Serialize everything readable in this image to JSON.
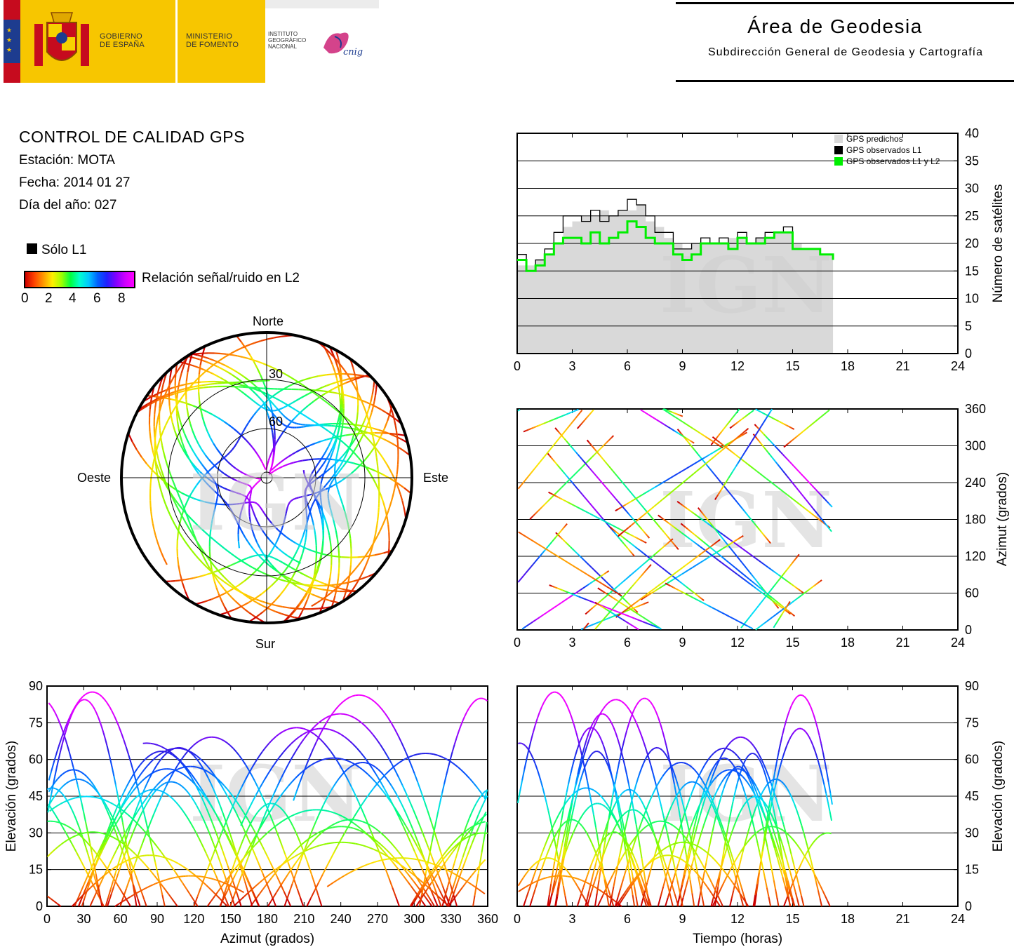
{
  "header": {
    "government": [
      "GOBIERNO",
      "DE ESPAÑA"
    ],
    "ministry": [
      "MINISTERIO",
      "DE FOMENTO"
    ],
    "institute": [
      "INSTITUTO",
      "GEOGRÁFICO",
      "NACIONAL"
    ],
    "cnig_logo_text": "cnig",
    "area_title": "Área de Geodesia",
    "area_subtitle": "Subdirección General de Geodesia y Cartografía"
  },
  "info": {
    "title": "CONTROL DE CALIDAD GPS",
    "station": "Estación: MOTA",
    "date": "Fecha: 2014 01 27",
    "doy": "Día del año: 027"
  },
  "legend": {
    "l1_only": "Sólo L1",
    "snr_label": "Relación señal/ruido en L2",
    "snr_ticks": [
      "0",
      "2",
      "4",
      "6",
      "8"
    ]
  },
  "watermark": "IGN",
  "chart_data": [
    {
      "id": "skyplot",
      "type": "scatter",
      "title": "",
      "directions": {
        "north": "Norte",
        "south": "Sur",
        "east": "Este",
        "west": "Oeste"
      },
      "rings": [
        "30",
        "60"
      ],
      "color_scale": "SNR L2 0-8"
    },
    {
      "id": "satellite-count",
      "type": "line",
      "xlabel": "",
      "ylabel": "Número de satélites",
      "xlim": [
        0,
        24
      ],
      "ylim": [
        0,
        40
      ],
      "xticks": [
        "0",
        "3",
        "6",
        "9",
        "12",
        "15",
        "18",
        "21",
        "24"
      ],
      "yticks": [
        "0",
        "5",
        "10",
        "15",
        "20",
        "25",
        "30",
        "35",
        "40"
      ],
      "legend_position": "top-right",
      "x": [
        0,
        0.5,
        1,
        1.5,
        2,
        2.5,
        3,
        3.5,
        4,
        4.5,
        5,
        5.5,
        6,
        6.5,
        7,
        7.5,
        8,
        8.5,
        9,
        9.5,
        10,
        10.5,
        11,
        11.5,
        12,
        12.5,
        13,
        13.5,
        14,
        14.5,
        15,
        15.5,
        16,
        16.5,
        17.2
      ],
      "series": [
        {
          "name": "GPS predichos",
          "color": "#d9d9d9",
          "values": [
            16,
            16,
            17,
            18,
            20,
            23,
            24,
            25,
            25,
            26,
            25,
            26,
            26,
            27,
            24,
            23,
            21,
            20,
            19,
            20,
            20,
            20,
            20,
            21,
            21,
            20,
            21,
            21,
            22,
            22,
            20,
            19,
            19,
            18,
            17
          ]
        },
        {
          "name": "GPS observados L1",
          "color": "#000000",
          "values": [
            18,
            15,
            17,
            19,
            22,
            25,
            25,
            24,
            26,
            24,
            25,
            26,
            28,
            27,
            25,
            22,
            22,
            19,
            19,
            20,
            21,
            20,
            21,
            20,
            22,
            20,
            21,
            22,
            22,
            23,
            19,
            19,
            19,
            18,
            17
          ]
        },
        {
          "name": "GPS observados L1 y L2",
          "color": "#00ee00",
          "values": [
            17,
            15,
            16,
            18,
            20,
            21,
            21,
            20,
            22,
            20,
            21,
            22,
            24,
            23,
            21,
            20,
            20,
            18,
            17,
            18,
            20,
            20,
            20,
            19,
            21,
            20,
            20,
            21,
            22,
            22,
            19,
            19,
            19,
            18,
            17
          ]
        }
      ]
    },
    {
      "id": "azimuth-time",
      "type": "scatter",
      "xlabel": "",
      "ylabel": "Azimut (grados)",
      "xlim": [
        0,
        24
      ],
      "ylim": [
        0,
        360
      ],
      "xticks": [
        "0",
        "3",
        "6",
        "9",
        "12",
        "15",
        "18",
        "21",
        "24"
      ],
      "yticks": [
        "0",
        "60",
        "120",
        "180",
        "240",
        "300",
        "360"
      ]
    },
    {
      "id": "elevation-azimuth",
      "type": "scatter",
      "xlabel": "Azimut (grados)",
      "ylabel": "Elevación (grados)",
      "xlim": [
        0,
        360
      ],
      "ylim": [
        0,
        90
      ],
      "xticks": [
        "0",
        "30",
        "60",
        "90",
        "120",
        "150",
        "180",
        "210",
        "240",
        "270",
        "300",
        "330",
        "360"
      ],
      "yticks": [
        "0",
        "15",
        "30",
        "45",
        "60",
        "75",
        "90"
      ]
    },
    {
      "id": "elevation-time",
      "type": "scatter",
      "xlabel": "Tiempo (horas)",
      "ylabel": "Elevación (grados)",
      "xlim": [
        0,
        24
      ],
      "ylim": [
        0,
        90
      ],
      "xticks": [
        "0",
        "3",
        "6",
        "9",
        "12",
        "15",
        "18",
        "21",
        "24"
      ],
      "yticks": [
        "0",
        "15",
        "30",
        "45",
        "60",
        "75",
        "90"
      ]
    }
  ]
}
